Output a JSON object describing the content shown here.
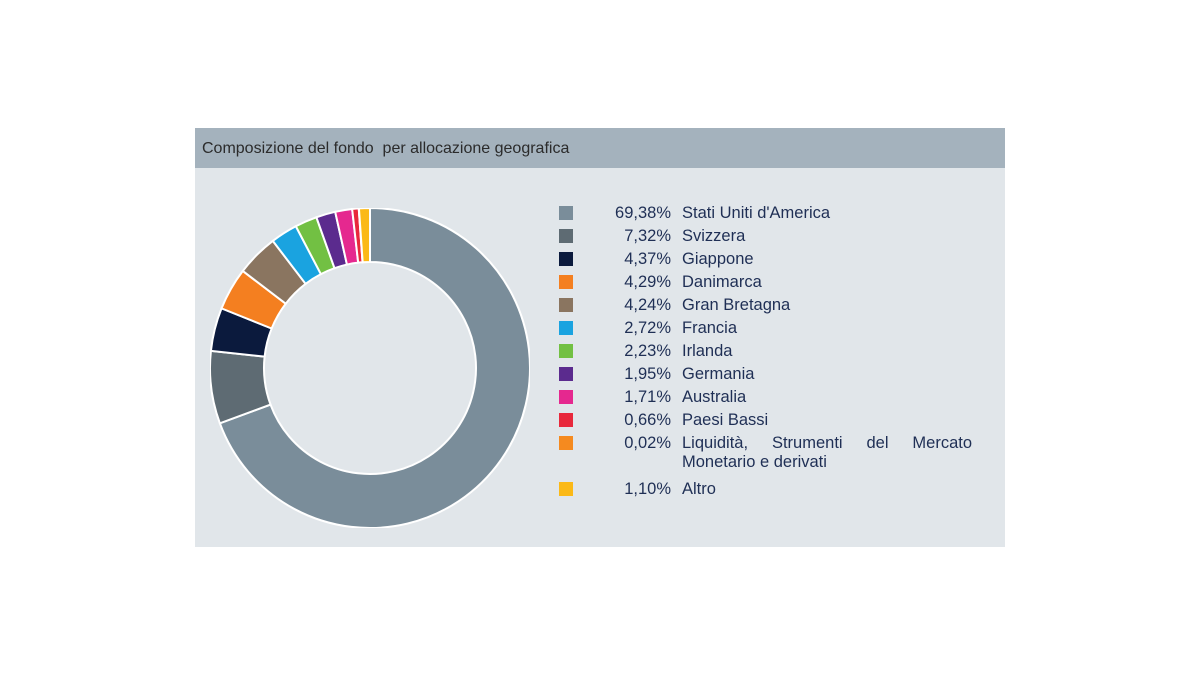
{
  "panel": {
    "title": "Composizione del fondo  per allocazione geografica"
  },
  "chart_data": {
    "type": "pie",
    "style": "donut",
    "title": "Composizione del fondo  per allocazione geografica",
    "legend_position": "right",
    "series": [
      {
        "label": "Stati Uniti d'America",
        "value": 69.38,
        "display": "69,38%",
        "color": "#7a8d9a"
      },
      {
        "label": "Svizzera",
        "value": 7.32,
        "display": "7,32%",
        "color": "#5e6b73"
      },
      {
        "label": "Giappone",
        "value": 4.37,
        "display": "4,37%",
        "color": "#0b1a3d"
      },
      {
        "label": "Danimarca",
        "value": 4.29,
        "display": "4,29%",
        "color": "#f47f20"
      },
      {
        "label": "Gran Bretagna",
        "value": 4.24,
        "display": "4,24%",
        "color": "#8a7560"
      },
      {
        "label": "Francia",
        "value": 2.72,
        "display": "2,72%",
        "color": "#1aa3e0"
      },
      {
        "label": "Irlanda",
        "value": 2.23,
        "display": "2,23%",
        "color": "#72c043"
      },
      {
        "label": "Germania",
        "value": 1.95,
        "display": "1,95%",
        "color": "#5b2b8e"
      },
      {
        "label": "Australia",
        "value": 1.71,
        "display": "1,71%",
        "color": "#e5288f"
      },
      {
        "label": "Paesi Bassi",
        "value": 0.66,
        "display": "0,66%",
        "color": "#e8283c"
      },
      {
        "label": "Liquidità, Strumenti del Mercato Monetario e derivati",
        "value": 0.02,
        "display": "0,02%",
        "color": "#f58a1f"
      },
      {
        "label": "Altro",
        "value": 1.1,
        "display": "1,10%",
        "color": "#fbb917"
      }
    ]
  }
}
